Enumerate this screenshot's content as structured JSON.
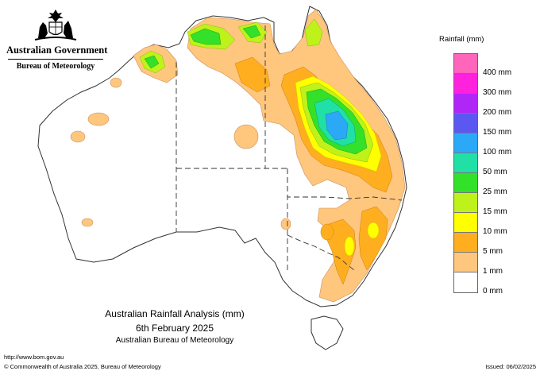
{
  "header": {
    "government": "Australian Government",
    "bureau": "Bureau of Meteorology"
  },
  "icons": {
    "crest": "coat-of-arms-icon"
  },
  "title": {
    "line1": "Australian Rainfall Analysis (mm)",
    "line2": "6th February 2025",
    "line3": "Australian Bureau of Meteorology"
  },
  "legend": {
    "title": "Rainfall (mm)",
    "items": [
      {
        "label": "",
        "color": "#ff66bb"
      },
      {
        "label": "400 mm",
        "color": "#ff22dd"
      },
      {
        "label": "300 mm",
        "color": "#b026f6"
      },
      {
        "label": "200 mm",
        "color": "#5a58f0"
      },
      {
        "label": "150 mm",
        "color": "#2ba9f6"
      },
      {
        "label": "100 mm",
        "color": "#20e0a6"
      },
      {
        "label": "50 mm",
        "color": "#33e02a"
      },
      {
        "label": "25 mm",
        "color": "#bff21a"
      },
      {
        "label": "15 mm",
        "color": "#ffff00"
      },
      {
        "label": "10 mm",
        "color": "#ffae1f"
      },
      {
        "label": "5 mm",
        "color": "#ffc67e"
      },
      {
        "label": "1 mm",
        "color": "#ffffff"
      },
      {
        "label": "0 mm",
        "color": ""
      }
    ]
  },
  "footer": {
    "url": "http://www.bom.gov.au",
    "copyright": "© Commonwealth of Australia 2025, Bureau of Meteorology",
    "issued": "Issued: 06/02/2025"
  }
}
